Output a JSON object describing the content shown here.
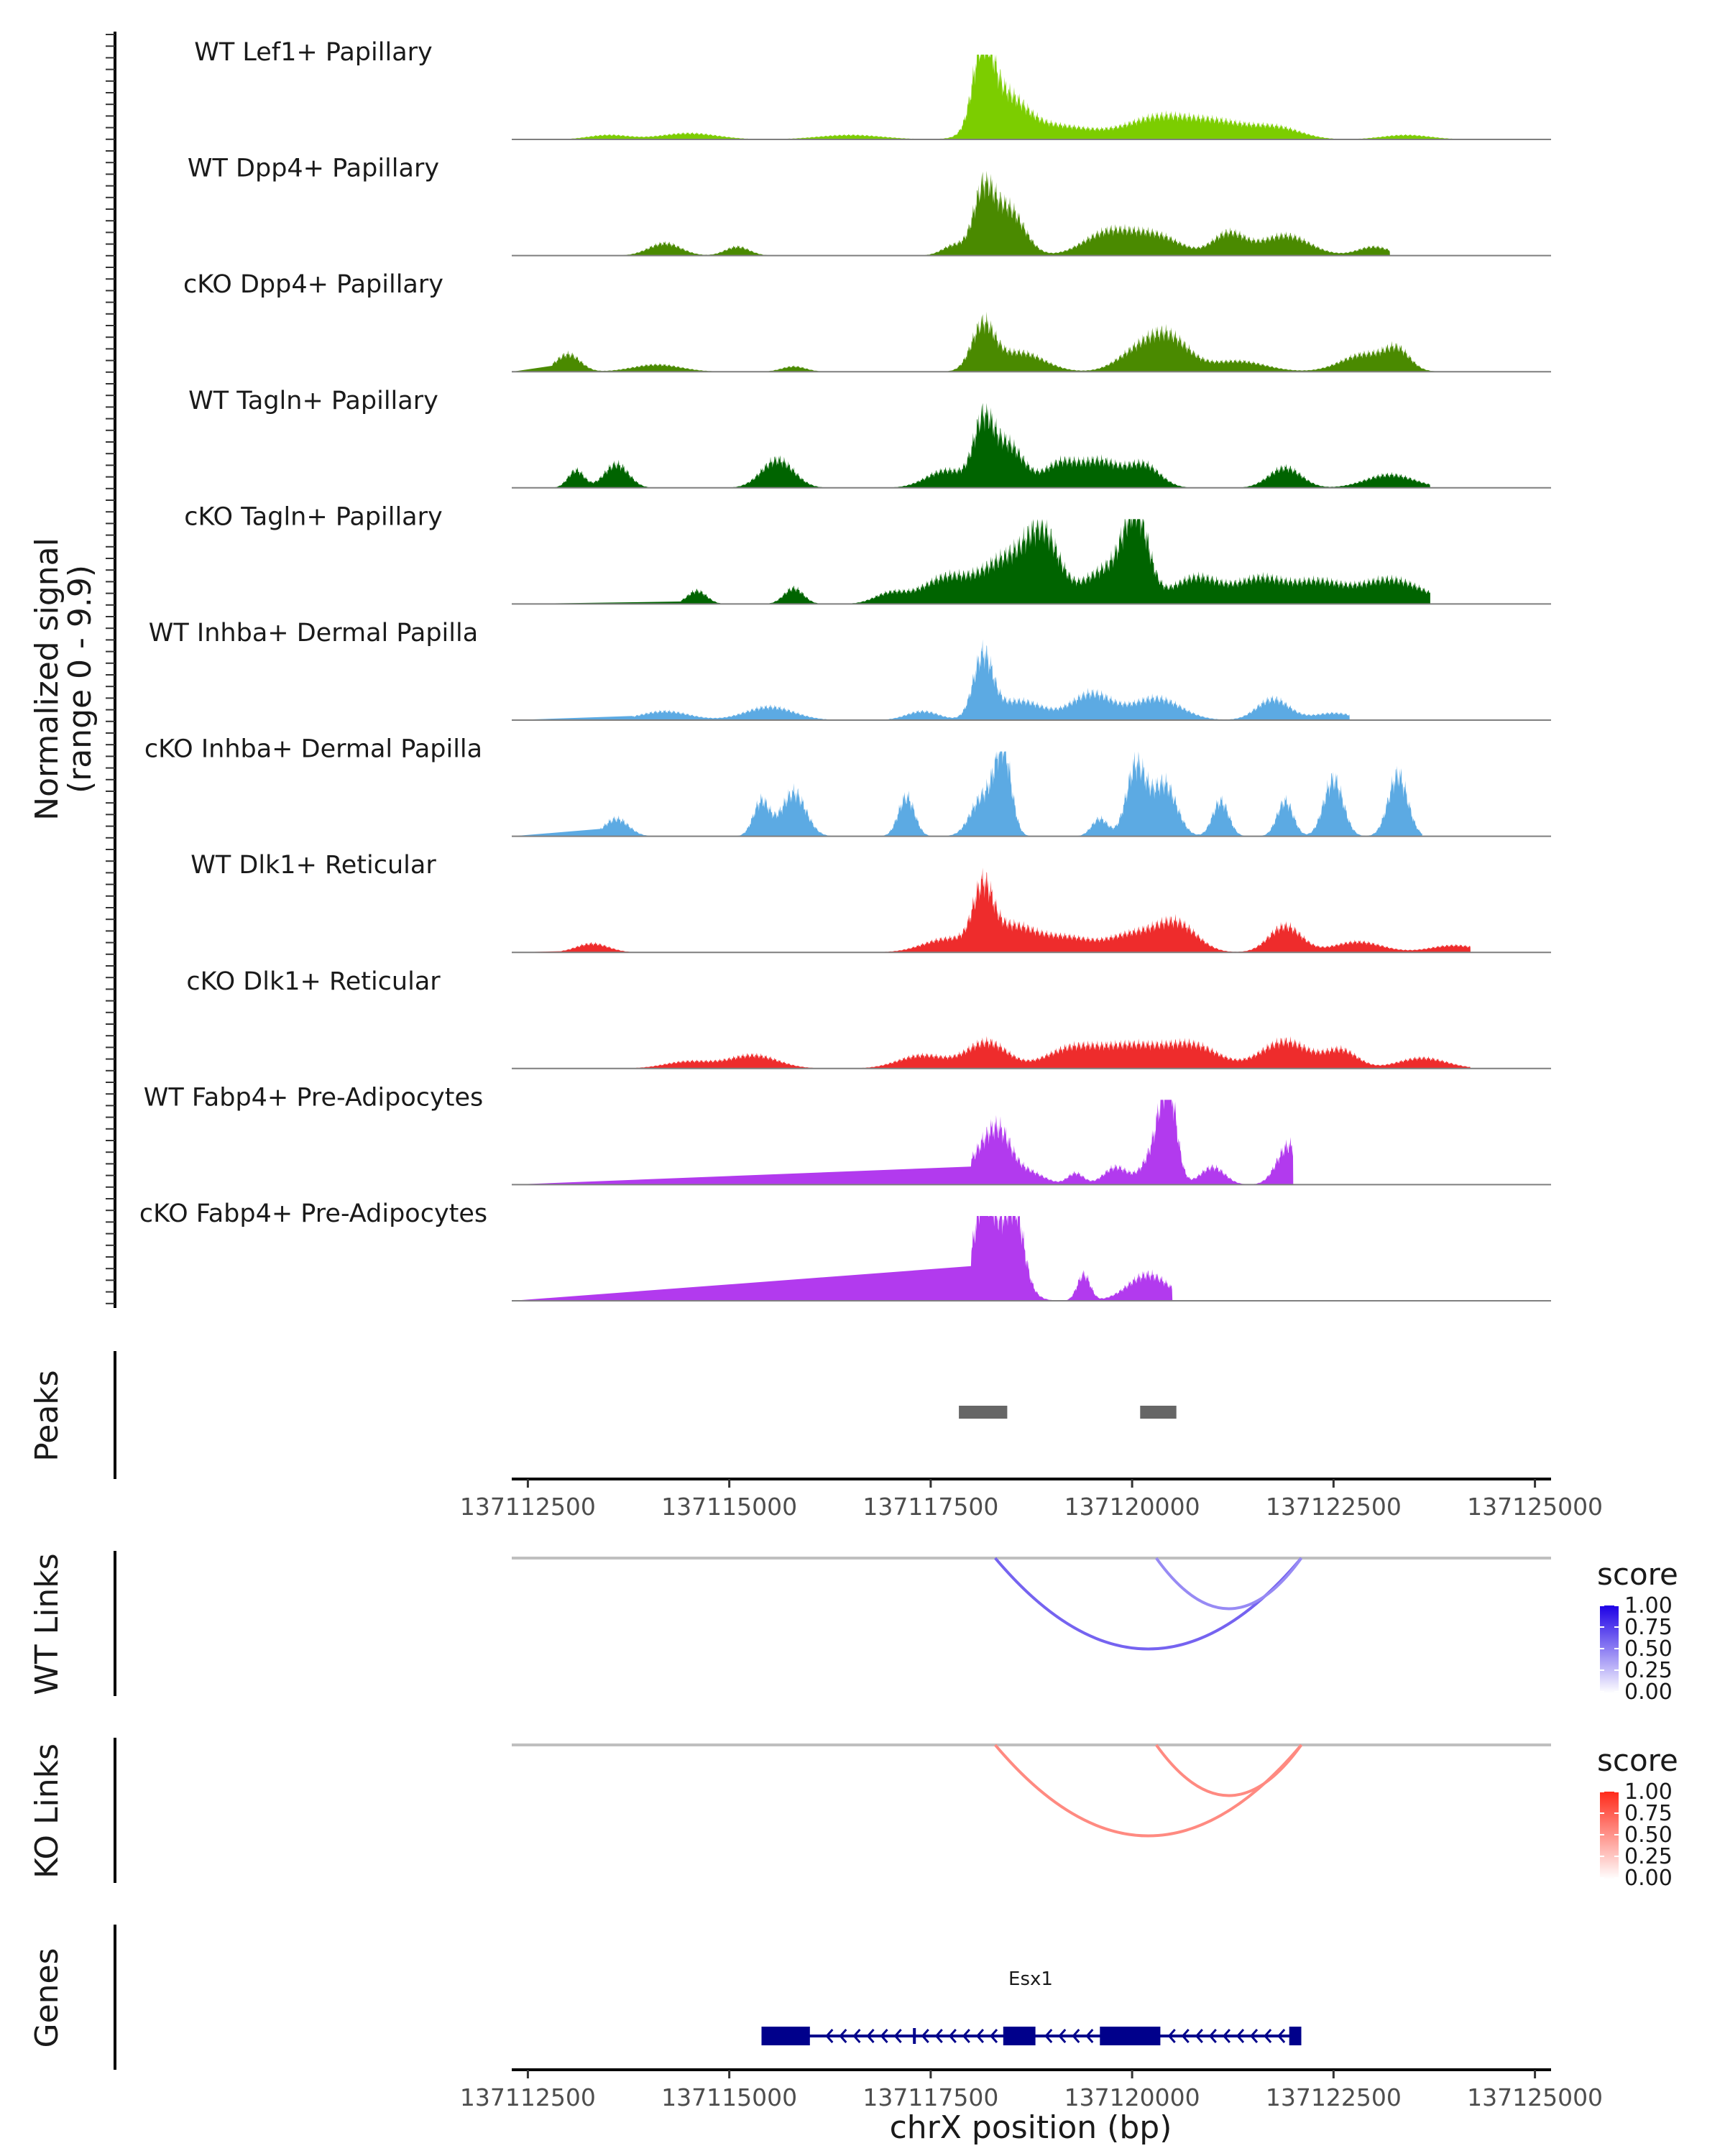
{
  "chart_data": {
    "type": "area",
    "title": "",
    "xlabel": "chrX position (bp)",
    "chrom": "chrX",
    "xlim": [
      137112300,
      137125200
    ],
    "x_ticks": [
      137112500,
      137115000,
      137117500,
      137120000,
      137122500,
      137125000
    ],
    "x_tick_labels": [
      "137112500",
      "137115000",
      "137117500",
      "137120000",
      "137122500",
      "137125000"
    ],
    "signal_ylabel": "Normalized signal",
    "signal_ylabel_range": "(range 0 - 9.9)",
    "ylim": [
      0,
      9.9
    ],
    "coverage_tracks": [
      {
        "name": "WT Lef1+ Papillary",
        "color": "#7ccd00",
        "peaks": [
          [
            137118150,
            9.0,
            120
          ],
          [
            137118400,
            4.5,
            250
          ],
          [
            137119000,
            1.6,
            500
          ],
          [
            137120350,
            2.5,
            400
          ],
          [
            137121100,
            1.7,
            350
          ],
          [
            137121800,
            1.3,
            300
          ],
          [
            137113500,
            0.5,
            250
          ],
          [
            137114500,
            0.7,
            350
          ],
          [
            137116500,
            0.5,
            400
          ],
          [
            137123400,
            0.5,
            300
          ]
        ],
        "range": [
          137112800,
          137124000
        ]
      },
      {
        "name": "WT Dpp4+ Papillary",
        "color": "#4a8a00",
        "peaks": [
          [
            137118150,
            6.5,
            120
          ],
          [
            137118450,
            5.5,
            200
          ],
          [
            137117800,
            1.2,
            150
          ],
          [
            137119700,
            2.6,
            300
          ],
          [
            137120300,
            2.2,
            300
          ],
          [
            137121200,
            2.5,
            200
          ],
          [
            137121900,
            2.3,
            300
          ],
          [
            137114200,
            1.4,
            200
          ],
          [
            137115100,
            1.0,
            150
          ],
          [
            137123000,
            1.0,
            200
          ]
        ],
        "range": [
          137112800,
          137123200
        ]
      },
      {
        "name": "cKO Dpp4+ Papillary",
        "color": "#4a8a00",
        "peaks": [
          [
            137118150,
            5.0,
            140
          ],
          [
            137118600,
            2.2,
            300
          ],
          [
            137120450,
            3.8,
            250
          ],
          [
            137120050,
            2.0,
            250
          ],
          [
            137121300,
            1.2,
            350
          ],
          [
            137122900,
            2.0,
            300
          ],
          [
            137123300,
            2.0,
            150
          ],
          [
            137113000,
            2.0,
            150
          ],
          [
            137114100,
            0.8,
            300
          ],
          [
            137115800,
            0.6,
            150
          ]
        ],
        "range": [
          137112800,
          137124000
        ]
      },
      {
        "name": "WT Tagln+ Papillary",
        "color": "#006400",
        "peaks": [
          [
            137118150,
            6.5,
            120
          ],
          [
            137118450,
            5.0,
            200
          ],
          [
            137117700,
            2.0,
            250
          ],
          [
            137119100,
            2.6,
            200
          ],
          [
            137119600,
            3.0,
            250
          ],
          [
            137120150,
            2.5,
            200
          ],
          [
            137121900,
            2.3,
            200
          ],
          [
            137115600,
            3.2,
            200
          ],
          [
            137113600,
            2.7,
            150
          ],
          [
            137113100,
            2.0,
            100
          ],
          [
            137123200,
            1.5,
            300
          ]
        ],
        "range": [
          137112800,
          137123700
        ]
      },
      {
        "name": "cKO Tagln+ Papillary",
        "color": "#006400",
        "peaks": [
          [
            137118450,
            5.0,
            300
          ],
          [
            137118900,
            7.0,
            200
          ],
          [
            137117700,
            3.0,
            300
          ],
          [
            137120050,
            9.0,
            150
          ],
          [
            137119700,
            4.0,
            300
          ],
          [
            137120800,
            3.0,
            300
          ],
          [
            137121600,
            2.8,
            300
          ],
          [
            137122300,
            2.3,
            300
          ],
          [
            137123200,
            2.8,
            400
          ],
          [
            137117000,
            1.2,
            200
          ],
          [
            137114600,
            1.5,
            120
          ],
          [
            137115800,
            1.8,
            120
          ]
        ],
        "range": [
          137114400,
          137123700
        ]
      },
      {
        "name": "WT Inhba+ Dermal Papilla",
        "color": "#5caae3",
        "peaks": [
          [
            137118150,
            7.0,
            120
          ],
          [
            137118600,
            2.2,
            300
          ],
          [
            137119500,
            3.0,
            250
          ],
          [
            137120300,
            2.5,
            300
          ],
          [
            137121750,
            2.4,
            200
          ],
          [
            137114200,
            1.0,
            300
          ],
          [
            137115500,
            1.5,
            300
          ],
          [
            137117400,
            1.0,
            200
          ],
          [
            137122500,
            0.8,
            250
          ]
        ],
        "range": [
          137113800,
          137122700
        ]
      },
      {
        "name": "cKO Inhba+ Dermal Papilla",
        "color": "#5caae3",
        "peaks": [
          [
            137118400,
            9.5,
            100
          ],
          [
            137118150,
            4.5,
            150
          ],
          [
            137120050,
            8.0,
            120
          ],
          [
            137120400,
            6.0,
            150
          ],
          [
            137121900,
            4.0,
            100
          ],
          [
            137122500,
            6.5,
            120
          ],
          [
            137123300,
            7.0,
            120
          ],
          [
            137115400,
            4.0,
            100
          ],
          [
            137115800,
            5.0,
            150
          ],
          [
            137117200,
            4.5,
            100
          ],
          [
            137113600,
            2.0,
            150
          ],
          [
            137121100,
            4.0,
            100
          ],
          [
            137119600,
            2.0,
            100
          ]
        ],
        "range": [
          137113400,
          137123600
        ]
      },
      {
        "name": "WT Dlk1+ Reticular",
        "color": "#ee2c2c",
        "peaks": [
          [
            137118150,
            6.2,
            120
          ],
          [
            137118500,
            3.0,
            300
          ],
          [
            137119200,
            1.6,
            300
          ],
          [
            137120550,
            3.2,
            250
          ],
          [
            137121900,
            3.0,
            200
          ],
          [
            137117700,
            1.5,
            300
          ],
          [
            137120000,
            2.0,
            300
          ],
          [
            137113300,
            1.0,
            200
          ],
          [
            137122800,
            1.2,
            300
          ],
          [
            137124000,
            0.8,
            300
          ]
        ],
        "range": [
          137112900,
          137124200
        ]
      },
      {
        "name": "cKO Dlk1+ Reticular",
        "color": "#ee2c2c",
        "peaks": [
          [
            137118200,
            3.0,
            250
          ],
          [
            137120000,
            2.7,
            500
          ],
          [
            137121900,
            3.1,
            300
          ],
          [
            137117400,
            1.5,
            300
          ],
          [
            137119200,
            1.7,
            300
          ],
          [
            137120800,
            2.0,
            300
          ],
          [
            137122600,
            2.0,
            200
          ],
          [
            137115300,
            1.5,
            300
          ],
          [
            137114500,
            0.8,
            300
          ],
          [
            137123600,
            1.2,
            300
          ]
        ],
        "range": [
          137113600,
          137124200
        ]
      },
      {
        "name": "WT Fabp4+ Pre-Adipocytes",
        "color": "#b23aee",
        "peaks": [
          [
            137120450,
            9.8,
            100
          ],
          [
            137120300,
            4.0,
            150
          ],
          [
            137118350,
            5.5,
            150
          ],
          [
            137118100,
            3.0,
            150
          ],
          [
            137121950,
            4.5,
            150
          ],
          [
            137121000,
            2.0,
            150
          ],
          [
            137119800,
            2.0,
            150
          ],
          [
            137118700,
            1.5,
            200
          ],
          [
            137119300,
            1.3,
            100
          ]
        ],
        "range": [
          137118000,
          137122000
        ]
      },
      {
        "name": "cKO Fabp4+ Pre-Adipocytes",
        "color": "#b23aee",
        "peaks": [
          [
            137118150,
            9.5,
            120
          ],
          [
            137118400,
            7.0,
            200
          ],
          [
            137118550,
            6.0,
            100
          ],
          [
            137119400,
            3.0,
            80
          ],
          [
            137120200,
            3.0,
            250
          ]
        ],
        "range": [
          137118000,
          137120500
        ]
      }
    ],
    "peaks_track": {
      "label": "Peaks",
      "color": "#666666",
      "regions": [
        [
          137117850,
          137118450
        ],
        [
          137120100,
          137120550
        ]
      ]
    },
    "link_tracks": [
      {
        "label": "WT Links",
        "legend_title": "score",
        "legend_ticks": [
          "1.00",
          "0.75",
          "0.50",
          "0.25",
          "0.00"
        ],
        "gradient_high": "#1d00e6",
        "links": [
          {
            "start": 137118300,
            "end": 137122100,
            "score": 0.6
          },
          {
            "start": 137120300,
            "end": 137122100,
            "score": 0.35
          }
        ]
      },
      {
        "label": "KO Links",
        "legend_title": "score",
        "legend_ticks": [
          "1.00",
          "0.75",
          "0.50",
          "0.25",
          "0.00"
        ],
        "gradient_high": "#ff2a1a",
        "links": [
          {
            "start": 137118300,
            "end": 137122100,
            "score": 0.5
          },
          {
            "start": 137120300,
            "end": 137122100,
            "score": 0.5
          }
        ]
      }
    ],
    "gene_track": {
      "label": "Genes",
      "gene_name": "Esx1",
      "strand": "-",
      "color": "#00008b",
      "start": 137115400,
      "end": 137122100,
      "exons": [
        [
          137115400,
          137116000
        ],
        [
          137117280,
          137117310
        ],
        [
          137118400,
          137118800
        ],
        [
          137119600,
          137120350
        ],
        [
          137121950,
          137122100
        ]
      ]
    }
  }
}
